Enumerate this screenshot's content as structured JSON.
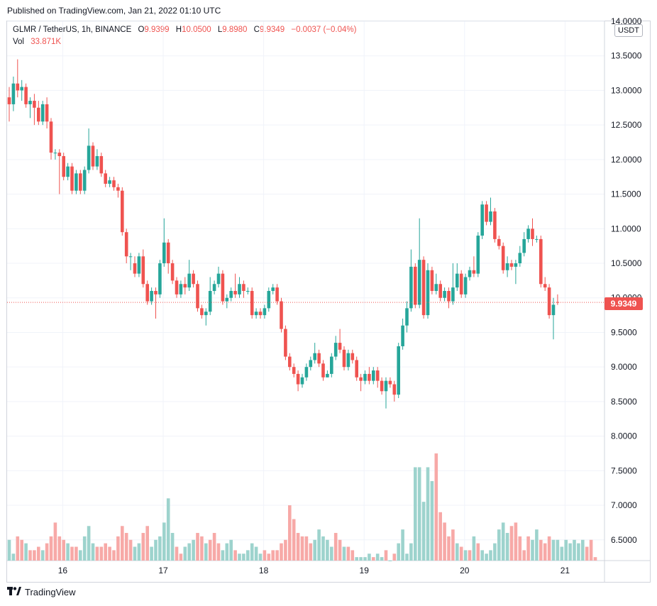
{
  "header": {
    "published": "Published on TradingView.com, Jan 21, 2022 01:10 UTC"
  },
  "legend": {
    "symbol": "GLMR / TetherUS, 1h, BINANCE",
    "open_label": "O",
    "open": "9.9399",
    "high_label": "H",
    "high": "10.0500",
    "low_label": "L",
    "low": "9.8980",
    "close_label": "C",
    "close": "9.9349",
    "change": "−0.0037 (−0.04%)",
    "vol_label": "Vol",
    "vol": "33.871K"
  },
  "price_axis": {
    "unit": "USDT",
    "last_price": "9.9349",
    "ticks": [
      "14.0000",
      "13.5000",
      "13.0000",
      "12.5000",
      "12.0000",
      "11.5000",
      "11.0000",
      "10.5000",
      "10.0000",
      "9.5000",
      "9.0000",
      "8.5000",
      "8.0000",
      "7.5000",
      "7.0000",
      "6.5000"
    ]
  },
  "time_axis": {
    "ticks": [
      "16",
      "17",
      "18",
      "19",
      "20",
      "21"
    ]
  },
  "footer": {
    "logo_text": "TradingView"
  },
  "colors": {
    "up": "#26a69a",
    "down": "#ef5350",
    "vol_up": "#9dd3cd",
    "vol_down": "#f7a9a7",
    "grid": "#f0f3fa"
  },
  "chart_data": {
    "type": "candlestick",
    "interval": "1h",
    "price_range": [
      6.2,
      14.0
    ],
    "price_ticks": [
      14.0,
      13.5,
      13.0,
      12.5,
      12.0,
      11.5,
      11.0,
      10.5,
      10.0,
      9.5,
      9.0,
      8.5,
      8.0,
      7.5,
      7.0,
      6.5
    ],
    "last_price": 9.9349,
    "day_labels": [
      "16",
      "17",
      "18",
      "19",
      "20",
      "21"
    ],
    "day_start_index": [
      6,
      30,
      54,
      78,
      102,
      126
    ],
    "candles": [
      [
        12.9,
        12.8,
        13.05,
        12.55
      ],
      [
        12.8,
        13.1,
        13.2,
        12.7
      ],
      [
        13.1,
        13.0,
        13.45,
        12.9
      ],
      [
        13.0,
        13.05,
        13.15,
        12.85
      ],
      [
        13.05,
        12.8,
        13.1,
        12.75
      ],
      [
        12.8,
        12.85,
        12.9,
        12.6
      ],
      [
        12.85,
        12.75,
        12.95,
        12.5
      ],
      [
        12.75,
        12.55,
        12.85,
        12.5
      ],
      [
        12.55,
        12.8,
        12.85,
        12.5
      ],
      [
        12.8,
        12.55,
        12.9,
        12.45
      ],
      [
        12.55,
        12.1,
        12.6,
        12.0
      ],
      [
        12.1,
        12.1,
        12.15,
        12.0
      ],
      [
        12.1,
        12.05,
        12.15,
        11.5
      ],
      [
        12.05,
        11.75,
        12.1,
        11.7
      ],
      [
        11.75,
        11.9,
        11.95,
        11.7
      ],
      [
        11.9,
        11.55,
        11.95,
        11.5
      ],
      [
        11.55,
        11.8,
        11.85,
        11.5
      ],
      [
        11.8,
        11.55,
        11.85,
        11.5
      ],
      [
        11.55,
        11.85,
        11.9,
        11.5
      ],
      [
        11.85,
        12.2,
        12.45,
        11.8
      ],
      [
        12.2,
        11.9,
        12.25,
        11.85
      ],
      [
        11.9,
        12.05,
        12.15,
        11.85
      ],
      [
        12.05,
        11.8,
        12.1,
        11.75
      ],
      [
        11.8,
        11.65,
        11.85,
        11.6
      ],
      [
        11.65,
        11.7,
        11.75,
        11.6
      ],
      [
        11.7,
        11.6,
        11.75,
        11.55
      ],
      [
        11.6,
        11.55,
        11.65,
        11.45
      ],
      [
        11.55,
        10.95,
        11.6,
        10.9
      ],
      [
        10.95,
        10.6,
        11.0,
        10.5
      ],
      [
        10.6,
        10.6,
        10.65,
        10.4
      ],
      [
        10.5,
        10.35,
        10.6,
        10.3
      ],
      [
        10.35,
        10.6,
        10.65,
        10.3
      ],
      [
        10.6,
        10.2,
        10.7,
        10.15
      ],
      [
        10.2,
        9.95,
        10.25,
        9.9
      ],
      [
        9.95,
        10.1,
        10.15,
        9.9
      ],
      [
        10.1,
        10.05,
        10.15,
        9.7
      ],
      [
        10.05,
        10.5,
        10.55,
        10.0
      ],
      [
        10.5,
        10.8,
        11.15,
        10.45
      ],
      [
        10.8,
        10.5,
        10.85,
        10.35
      ],
      [
        10.5,
        10.25,
        10.55,
        10.2
      ],
      [
        10.25,
        10.05,
        10.3,
        10.0
      ],
      [
        10.05,
        10.2,
        10.25,
        10.0
      ],
      [
        10.2,
        10.15,
        10.3,
        10.05
      ],
      [
        10.15,
        10.35,
        10.55,
        10.1
      ],
      [
        10.35,
        10.2,
        10.4,
        10.15
      ],
      [
        10.2,
        9.85,
        10.25,
        9.8
      ],
      [
        9.85,
        9.75,
        9.9,
        9.7
      ],
      [
        9.75,
        9.8,
        9.85,
        9.6
      ],
      [
        9.8,
        10.1,
        10.3,
        9.75
      ],
      [
        10.1,
        10.2,
        10.25,
        10.05
      ],
      [
        10.2,
        10.35,
        10.45,
        10.15
      ],
      [
        10.35,
        9.95,
        10.4,
        9.9
      ],
      [
        9.95,
        10.0,
        10.05,
        9.85
      ],
      [
        10.0,
        10.1,
        10.15,
        9.95
      ],
      [
        10.1,
        10.05,
        10.35,
        10.0
      ],
      [
        10.05,
        10.2,
        10.3,
        10.0
      ],
      [
        10.2,
        10.1,
        10.25,
        10.0
      ],
      [
        10.1,
        10.1,
        10.15,
        10.05
      ],
      [
        10.1,
        9.75,
        10.15,
        9.7
      ],
      [
        9.75,
        9.8,
        9.85,
        9.7
      ],
      [
        9.8,
        9.75,
        9.85,
        9.7
      ],
      [
        9.75,
        9.85,
        9.9,
        9.7
      ],
      [
        9.85,
        10.1,
        10.15,
        9.8
      ],
      [
        10.1,
        10.15,
        10.2,
        10.05
      ],
      [
        10.15,
        9.95,
        10.2,
        9.9
      ],
      [
        9.95,
        9.55,
        10.0,
        9.5
      ],
      [
        9.55,
        9.15,
        9.6,
        9.1
      ],
      [
        9.15,
        9.0,
        9.2,
        8.95
      ],
      [
        9.0,
        8.9,
        9.05,
        8.85
      ],
      [
        8.9,
        8.75,
        8.95,
        8.65
      ],
      [
        8.75,
        8.85,
        8.9,
        8.7
      ],
      [
        8.85,
        9.0,
        9.05,
        8.8
      ],
      [
        9.0,
        9.1,
        9.15,
        8.95
      ],
      [
        9.1,
        9.2,
        9.35,
        9.05
      ],
      [
        9.2,
        9.05,
        9.25,
        9.0
      ],
      [
        9.05,
        8.85,
        9.1,
        8.8
      ],
      [
        8.85,
        8.9,
        8.95,
        8.85
      ],
      [
        8.9,
        9.15,
        9.2,
        8.85
      ],
      [
        9.15,
        9.35,
        9.45,
        9.1
      ],
      [
        9.35,
        9.25,
        9.55,
        9.2
      ],
      [
        9.25,
        9.0,
        9.3,
        8.95
      ],
      [
        9.0,
        9.2,
        9.25,
        8.95
      ],
      [
        9.2,
        9.1,
        9.25,
        9.05
      ],
      [
        9.1,
        8.85,
        9.15,
        8.8
      ],
      [
        8.85,
        8.8,
        8.9,
        8.65
      ],
      [
        8.8,
        8.9,
        8.95,
        8.75
      ],
      [
        8.9,
        8.8,
        9.0,
        8.75
      ],
      [
        8.8,
        8.95,
        9.0,
        8.75
      ],
      [
        8.95,
        8.8,
        9.0,
        8.7
      ],
      [
        8.8,
        8.65,
        8.85,
        8.6
      ],
      [
        8.65,
        8.8,
        8.85,
        8.4
      ],
      [
        8.8,
        8.75,
        8.85,
        8.7
      ],
      [
        8.75,
        8.6,
        8.8,
        8.5
      ],
      [
        8.6,
        9.3,
        9.35,
        8.55
      ],
      [
        9.3,
        9.6,
        9.7,
        9.25
      ],
      [
        9.6,
        9.85,
        9.95,
        9.5
      ],
      [
        9.85,
        10.45,
        10.7,
        9.8
      ],
      [
        10.45,
        9.9,
        10.5,
        9.85
      ],
      [
        9.9,
        10.55,
        11.15,
        9.85
      ],
      [
        10.55,
        9.75,
        10.6,
        9.7
      ],
      [
        9.75,
        10.4,
        10.5,
        9.7
      ],
      [
        10.4,
        10.1,
        10.45,
        10.05
      ],
      [
        10.1,
        10.2,
        10.35,
        10.05
      ],
      [
        10.2,
        10.0,
        10.25,
        9.95
      ],
      [
        10.0,
        10.1,
        10.15,
        9.95
      ],
      [
        10.1,
        9.95,
        10.15,
        9.85
      ],
      [
        9.95,
        10.15,
        10.5,
        9.9
      ],
      [
        10.15,
        10.35,
        10.5,
        10.1
      ],
      [
        10.35,
        10.05,
        10.4,
        10.0
      ],
      [
        10.05,
        10.3,
        10.35,
        10.0
      ],
      [
        10.3,
        10.4,
        10.45,
        10.25
      ],
      [
        10.4,
        10.35,
        10.6,
        10.3
      ],
      [
        10.35,
        10.9,
        10.95,
        10.3
      ],
      [
        10.9,
        11.35,
        11.4,
        10.85
      ],
      [
        11.35,
        11.1,
        11.4,
        11.05
      ],
      [
        11.1,
        11.25,
        11.45,
        11.05
      ],
      [
        11.25,
        10.85,
        11.3,
        10.8
      ],
      [
        10.85,
        10.75,
        10.9,
        10.7
      ],
      [
        10.75,
        10.4,
        10.8,
        10.35
      ],
      [
        10.4,
        10.5,
        10.6,
        10.3
      ],
      [
        10.5,
        10.45,
        10.55,
        10.4
      ],
      [
        10.45,
        10.5,
        10.55,
        10.2
      ],
      [
        10.5,
        10.65,
        10.75,
        10.45
      ],
      [
        10.65,
        10.85,
        10.95,
        10.6
      ],
      [
        10.85,
        11.0,
        11.05,
        10.8
      ],
      [
        11.0,
        10.85,
        11.15,
        10.75
      ],
      [
        10.85,
        10.85,
        10.9,
        10.8
      ],
      [
        10.85,
        10.2,
        10.9,
        10.15
      ],
      [
        10.2,
        10.15,
        10.3,
        10.1
      ],
      [
        10.15,
        9.75,
        10.2,
        9.7
      ],
      [
        9.75,
        9.9,
        10.0,
        9.4
      ],
      [
        9.9399,
        9.9349,
        10.05,
        9.898
      ]
    ],
    "volume": [
      [
        6.5,
        "u"
      ],
      [
        6.3,
        "u"
      ],
      [
        6.55,
        "d"
      ],
      [
        6.5,
        "d"
      ],
      [
        6.45,
        "u"
      ],
      [
        6.35,
        "d"
      ],
      [
        6.35,
        "d"
      ],
      [
        6.4,
        "d"
      ],
      [
        6.35,
        "u"
      ],
      [
        6.45,
        "d"
      ],
      [
        6.55,
        "d"
      ],
      [
        6.75,
        "d"
      ],
      [
        6.55,
        "d"
      ],
      [
        6.5,
        "d"
      ],
      [
        6.45,
        "u"
      ],
      [
        6.4,
        "d"
      ],
      [
        6.4,
        "d"
      ],
      [
        6.35,
        "u"
      ],
      [
        6.55,
        "u"
      ],
      [
        6.7,
        "u"
      ],
      [
        6.45,
        "u"
      ],
      [
        6.4,
        "d"
      ],
      [
        6.4,
        "d"
      ],
      [
        6.45,
        "d"
      ],
      [
        6.4,
        "d"
      ],
      [
        6.35,
        "d"
      ],
      [
        6.55,
        "d"
      ],
      [
        6.7,
        "d"
      ],
      [
        6.6,
        "d"
      ],
      [
        6.5,
        "d"
      ],
      [
        6.4,
        "u"
      ],
      [
        6.45,
        "u"
      ],
      [
        6.6,
        "d"
      ],
      [
        6.7,
        "d"
      ],
      [
        6.4,
        "u"
      ],
      [
        6.5,
        "u"
      ],
      [
        6.55,
        "u"
      ],
      [
        6.75,
        "u"
      ],
      [
        7.1,
        "u"
      ],
      [
        6.6,
        "u"
      ],
      [
        6.4,
        "d"
      ],
      [
        6.3,
        "d"
      ],
      [
        6.4,
        "u"
      ],
      [
        6.45,
        "u"
      ],
      [
        6.5,
        "u"
      ],
      [
        6.6,
        "d"
      ],
      [
        6.55,
        "d"
      ],
      [
        6.45,
        "u"
      ],
      [
        6.5,
        "d"
      ],
      [
        6.6,
        "d"
      ],
      [
        6.45,
        "d"
      ],
      [
        6.35,
        "u"
      ],
      [
        6.45,
        "u"
      ],
      [
        6.5,
        "u"
      ],
      [
        6.35,
        "d"
      ],
      [
        6.3,
        "u"
      ],
      [
        6.3,
        "u"
      ],
      [
        6.35,
        "u"
      ],
      [
        6.45,
        "u"
      ],
      [
        6.4,
        "u"
      ],
      [
        6.3,
        "u"
      ],
      [
        6.35,
        "d"
      ],
      [
        6.3,
        "d"
      ],
      [
        6.35,
        "d"
      ],
      [
        6.35,
        "d"
      ],
      [
        6.45,
        "d"
      ],
      [
        6.5,
        "d"
      ],
      [
        7.0,
        "d"
      ],
      [
        6.8,
        "d"
      ],
      [
        6.6,
        "d"
      ],
      [
        6.55,
        "d"
      ],
      [
        6.55,
        "d"
      ],
      [
        6.45,
        "d"
      ],
      [
        6.5,
        "u"
      ],
      [
        6.65,
        "u"
      ],
      [
        6.55,
        "u"
      ],
      [
        6.5,
        "u"
      ],
      [
        6.4,
        "u"
      ],
      [
        6.6,
        "d"
      ],
      [
        6.5,
        "d"
      ],
      [
        6.4,
        "u"
      ],
      [
        6.4,
        "d"
      ],
      [
        6.35,
        "d"
      ],
      [
        6.25,
        "u"
      ],
      [
        6.25,
        "u"
      ],
      [
        6.25,
        "u"
      ],
      [
        6.3,
        "u"
      ],
      [
        6.25,
        "d"
      ],
      [
        6.3,
        "u"
      ],
      [
        6.25,
        "u"
      ],
      [
        6.35,
        "d"
      ],
      [
        6.2,
        "u"
      ],
      [
        6.3,
        "d"
      ],
      [
        6.45,
        "u"
      ],
      [
        6.65,
        "u"
      ],
      [
        6.3,
        "u"
      ],
      [
        6.45,
        "u"
      ],
      [
        7.55,
        "u"
      ],
      [
        7.55,
        "u"
      ],
      [
        7.05,
        "u"
      ],
      [
        7.55,
        "u"
      ],
      [
        7.35,
        "u"
      ],
      [
        7.75,
        "d"
      ],
      [
        6.9,
        "d"
      ],
      [
        6.75,
        "d"
      ],
      [
        6.55,
        "d"
      ],
      [
        6.65,
        "d"
      ],
      [
        6.45,
        "u"
      ],
      [
        6.4,
        "d"
      ],
      [
        6.35,
        "u"
      ],
      [
        6.35,
        "d"
      ],
      [
        6.55,
        "u"
      ],
      [
        6.45,
        "d"
      ],
      [
        6.35,
        "u"
      ],
      [
        6.3,
        "u"
      ],
      [
        6.35,
        "u"
      ],
      [
        6.45,
        "u"
      ],
      [
        6.65,
        "u"
      ],
      [
        6.75,
        "u"
      ],
      [
        6.6,
        "u"
      ],
      [
        6.7,
        "d"
      ],
      [
        6.75,
        "d"
      ],
      [
        6.55,
        "d"
      ],
      [
        6.35,
        "d"
      ],
      [
        6.55,
        "d"
      ],
      [
        6.5,
        "u"
      ],
      [
        6.65,
        "u"
      ],
      [
        6.5,
        "d"
      ],
      [
        6.45,
        "d"
      ],
      [
        6.55,
        "d"
      ],
      [
        6.5,
        "u"
      ],
      [
        6.5,
        "u"
      ],
      [
        6.4,
        "u"
      ],
      [
        6.5,
        "u"
      ],
      [
        6.45,
        "u"
      ],
      [
        6.5,
        "u"
      ],
      [
        6.45,
        "u"
      ],
      [
        6.5,
        "u"
      ],
      [
        6.4,
        "d"
      ],
      [
        6.5,
        "d"
      ],
      [
        6.25,
        "d"
      ]
    ]
  }
}
